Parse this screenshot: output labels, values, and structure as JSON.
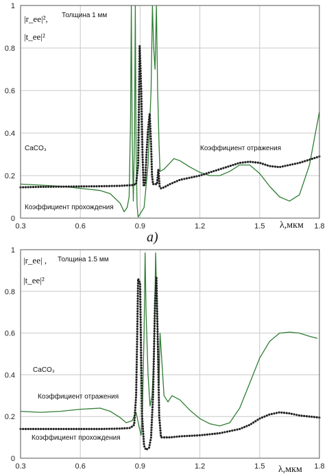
{
  "caption": "a)",
  "chart_data": [
    {
      "type": "line",
      "annotations": {
        "y_label_r": "|r_ee|²,",
        "y_label_t": "|t_ee|²",
        "thickness": "Толщина 1 мм",
        "material": "CaCO₃",
        "reflection": "Коэффициент отражения",
        "transmission": "Коэффициент прохождения",
        "x_unit": "λ,мкм"
      },
      "xlim": [
        0.3,
        1.8
      ],
      "ylim": [
        0,
        1
      ],
      "x_ticks": [
        "0.3",
        "0.6",
        "0.9",
        "1.2",
        "1.5",
        "1.8"
      ],
      "y_ticks": [
        "0",
        "0.2",
        "0.4",
        "0.6",
        "0.8",
        "1"
      ],
      "grid": true,
      "series": [
        {
          "name": "Коэффициент отражения",
          "style": "solid",
          "color": "#2e7d32",
          "points": [
            [
              0.3,
              0.16
            ],
            [
              0.4,
              0.155
            ],
            [
              0.5,
              0.15
            ],
            [
              0.6,
              0.14
            ],
            [
              0.7,
              0.13
            ],
            [
              0.75,
              0.115
            ],
            [
              0.8,
              0.07
            ],
            [
              0.82,
              0.03
            ],
            [
              0.835,
              0.05
            ],
            [
              0.845,
              0.1
            ],
            [
              0.852,
              0.45
            ],
            [
              0.856,
              1.0
            ],
            [
              0.86,
              0.4
            ],
            [
              0.866,
              0.08
            ],
            [
              0.872,
              0.4
            ],
            [
              0.876,
              1.0
            ],
            [
              0.88,
              0.3
            ],
            [
              0.885,
              0.06
            ],
            [
              0.89,
              0.005
            ],
            [
              0.9,
              0.02
            ],
            [
              0.92,
              0.05
            ],
            [
              0.94,
              0.25
            ],
            [
              0.955,
              0.6
            ],
            [
              0.962,
              1.0
            ],
            [
              0.968,
              0.8
            ],
            [
              0.975,
              0.7
            ],
            [
              0.982,
              1.0
            ],
            [
              0.988,
              0.6
            ],
            [
              0.995,
              0.35
            ],
            [
              1.0,
              0.22
            ],
            [
              1.02,
              0.23
            ],
            [
              1.05,
              0.26
            ],
            [
              1.07,
              0.28
            ],
            [
              1.1,
              0.27
            ],
            [
              1.15,
              0.24
            ],
            [
              1.2,
              0.215
            ],
            [
              1.25,
              0.2
            ],
            [
              1.3,
              0.2
            ],
            [
              1.35,
              0.22
            ],
            [
              1.4,
              0.25
            ],
            [
              1.45,
              0.25
            ],
            [
              1.5,
              0.21
            ],
            [
              1.55,
              0.15
            ],
            [
              1.6,
              0.1
            ],
            [
              1.65,
              0.08
            ],
            [
              1.7,
              0.11
            ],
            [
              1.75,
              0.25
            ],
            [
              1.8,
              0.5
            ]
          ]
        },
        {
          "name": "Коэффициент прохождения",
          "style": "dotted",
          "color": "#222222",
          "points": [
            [
              0.3,
              0.145
            ],
            [
              0.4,
              0.147
            ],
            [
              0.5,
              0.148
            ],
            [
              0.6,
              0.149
            ],
            [
              0.7,
              0.15
            ],
            [
              0.8,
              0.152
            ],
            [
              0.86,
              0.155
            ],
            [
              0.88,
              0.16
            ],
            [
              0.89,
              0.25
            ],
            [
              0.898,
              0.81
            ],
            [
              0.906,
              0.6
            ],
            [
              0.912,
              0.3
            ],
            [
              0.918,
              0.15
            ],
            [
              0.925,
              0.16
            ],
            [
              0.932,
              0.3
            ],
            [
              0.94,
              0.42
            ],
            [
              0.948,
              0.49
            ],
            [
              0.955,
              0.35
            ],
            [
              0.96,
              0.2
            ],
            [
              0.965,
              0.16
            ],
            [
              0.975,
              0.16
            ],
            [
              0.985,
              0.16
            ],
            [
              0.992,
              0.23
            ],
            [
              0.998,
              0.15
            ],
            [
              1.005,
              0.14
            ],
            [
              1.02,
              0.145
            ],
            [
              1.05,
              0.16
            ],
            [
              1.1,
              0.18
            ],
            [
              1.15,
              0.19
            ],
            [
              1.2,
              0.2
            ],
            [
              1.25,
              0.215
            ],
            [
              1.3,
              0.23
            ],
            [
              1.35,
              0.245
            ],
            [
              1.4,
              0.26
            ],
            [
              1.45,
              0.265
            ],
            [
              1.5,
              0.26
            ],
            [
              1.55,
              0.245
            ],
            [
              1.6,
              0.24
            ],
            [
              1.65,
              0.25
            ],
            [
              1.7,
              0.26
            ],
            [
              1.75,
              0.275
            ],
            [
              1.8,
              0.29
            ]
          ]
        }
      ]
    },
    {
      "type": "line",
      "annotations": {
        "y_label_r": "|r_ee| ,",
        "y_label_t": "|t_ee|²",
        "thickness": "Толщина 1.5 мм",
        "material": "CaCO₃",
        "reflection": "Коэффициент отражения",
        "transmission": "Коэффициент прохождения",
        "x_unit": "λ,мкм"
      },
      "xlim": [
        0.3,
        1.8
      ],
      "ylim": [
        0,
        1
      ],
      "x_ticks": [
        "0.3",
        "0.6",
        "0.9",
        "1.2",
        "1.5",
        "1.8"
      ],
      "y_ticks": [
        "0",
        "0.2",
        "0.4",
        "0.6",
        "0.8",
        "1"
      ],
      "grid": true,
      "series": [
        {
          "name": "Коэффициент отражения",
          "style": "solid",
          "color": "#2e7d32",
          "points": [
            [
              0.3,
              0.225
            ],
            [
              0.4,
              0.22
            ],
            [
              0.5,
              0.225
            ],
            [
              0.6,
              0.235
            ],
            [
              0.7,
              0.24
            ],
            [
              0.75,
              0.225
            ],
            [
              0.8,
              0.195
            ],
            [
              0.83,
              0.17
            ],
            [
              0.86,
              0.18
            ],
            [
              0.88,
              0.22
            ],
            [
              0.895,
              0.15
            ],
            [
              0.905,
              0.11
            ],
            [
              0.912,
              0.25
            ],
            [
              0.92,
              0.6
            ],
            [
              0.925,
              0.985
            ],
            [
              0.93,
              0.7
            ],
            [
              0.94,
              0.4
            ],
            [
              0.95,
              0.25
            ],
            [
              0.96,
              0.3
            ],
            [
              0.97,
              0.5
            ],
            [
              0.978,
              0.985
            ],
            [
              0.985,
              0.7
            ],
            [
              0.99,
              0.5
            ],
            [
              0.995,
              0.35
            ],
            [
              1.0,
              0.6
            ],
            [
              1.01,
              0.45
            ],
            [
              1.02,
              0.3
            ],
            [
              1.04,
              0.27
            ],
            [
              1.06,
              0.3
            ],
            [
              1.1,
              0.28
            ],
            [
              1.15,
              0.23
            ],
            [
              1.2,
              0.19
            ],
            [
              1.25,
              0.165
            ],
            [
              1.3,
              0.155
            ],
            [
              1.35,
              0.17
            ],
            [
              1.4,
              0.24
            ],
            [
              1.45,
              0.36
            ],
            [
              1.5,
              0.48
            ],
            [
              1.55,
              0.56
            ],
            [
              1.6,
              0.6
            ],
            [
              1.65,
              0.605
            ],
            [
              1.7,
              0.6
            ],
            [
              1.75,
              0.585
            ],
            [
              1.79,
              0.575
            ]
          ]
        },
        {
          "name": "Коэффициент прохождения",
          "style": "dotted",
          "color": "#222222",
          "points": [
            [
              0.3,
              0.14
            ],
            [
              0.4,
              0.14
            ],
            [
              0.5,
              0.14
            ],
            [
              0.6,
              0.14
            ],
            [
              0.7,
              0.14
            ],
            [
              0.8,
              0.142
            ],
            [
              0.85,
              0.145
            ],
            [
              0.87,
              0.16
            ],
            [
              0.88,
              0.3
            ],
            [
              0.885,
              0.55
            ],
            [
              0.89,
              0.86
            ],
            [
              0.9,
              0.84
            ],
            [
              0.905,
              0.5
            ],
            [
              0.91,
              0.2
            ],
            [
              0.92,
              0.06
            ],
            [
              0.93,
              0.04
            ],
            [
              0.945,
              0.05
            ],
            [
              0.955,
              0.1
            ],
            [
              0.965,
              0.3
            ],
            [
              0.975,
              0.75
            ],
            [
              0.982,
              0.87
            ],
            [
              0.99,
              0.5
            ],
            [
              0.996,
              0.2
            ],
            [
              1.005,
              0.1
            ],
            [
              1.05,
              0.1
            ],
            [
              1.1,
              0.105
            ],
            [
              1.2,
              0.11
            ],
            [
              1.3,
              0.12
            ],
            [
              1.35,
              0.13
            ],
            [
              1.4,
              0.14
            ],
            [
              1.45,
              0.16
            ],
            [
              1.5,
              0.19
            ],
            [
              1.55,
              0.21
            ],
            [
              1.6,
              0.22
            ],
            [
              1.65,
              0.215
            ],
            [
              1.7,
              0.205
            ],
            [
              1.75,
              0.2
            ],
            [
              1.8,
              0.195
            ]
          ]
        }
      ]
    }
  ]
}
